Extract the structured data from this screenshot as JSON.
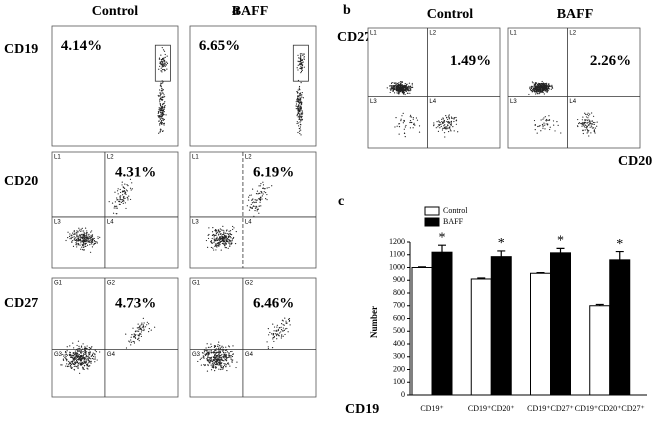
{
  "panel_a": {
    "label": "a",
    "columns": [
      "Control",
      "BAFF"
    ],
    "x_axis": "CD19",
    "rows": [
      {
        "marker": "CD19",
        "percentages": [
          "4.14%",
          "6.65%"
        ]
      },
      {
        "marker": "CD20",
        "quadrants": [
          "L1",
          "L2",
          "L3",
          "L4"
        ],
        "percentages": [
          "4.31%",
          "6.19%"
        ]
      },
      {
        "marker": "CD27",
        "quadrants": [
          "G1",
          "G2",
          "G3",
          "G4"
        ],
        "percentages": [
          "4.73%",
          "6.46%"
        ]
      }
    ]
  },
  "panel_b": {
    "label": "b",
    "columns": [
      "Control",
      "BAFF"
    ],
    "y_axis": "CD27",
    "x_axis": "CD20",
    "quadrants": [
      "L1",
      "L2",
      "L3",
      "L4"
    ],
    "percentages": [
      "1.49%",
      "2.26%"
    ]
  },
  "chart_data": {
    "type": "bar",
    "panel_label": "c",
    "y_label": "Number",
    "categories": [
      "CD19⁺",
      "CD19⁺CD20⁺",
      "CD19⁺CD27⁺",
      "CD19⁺CD20⁺CD27⁺"
    ],
    "series": [
      {
        "name": "Control",
        "color": "#ffffff",
        "values": [
          1000,
          910,
          955,
          700
        ],
        "errors": [
          5,
          8,
          5,
          10
        ]
      },
      {
        "name": "BAFF",
        "color": "#000000",
        "values": [
          1120,
          1085,
          1115,
          1060
        ],
        "errors": [
          55,
          45,
          35,
          65
        ],
        "significance": [
          "*",
          "*",
          "*",
          "*"
        ]
      }
    ],
    "ylim": [
      0,
      1200
    ],
    "yticks": [
      0,
      100,
      200,
      300,
      400,
      500,
      600,
      700,
      800,
      900,
      1000,
      1100,
      1200
    ]
  }
}
